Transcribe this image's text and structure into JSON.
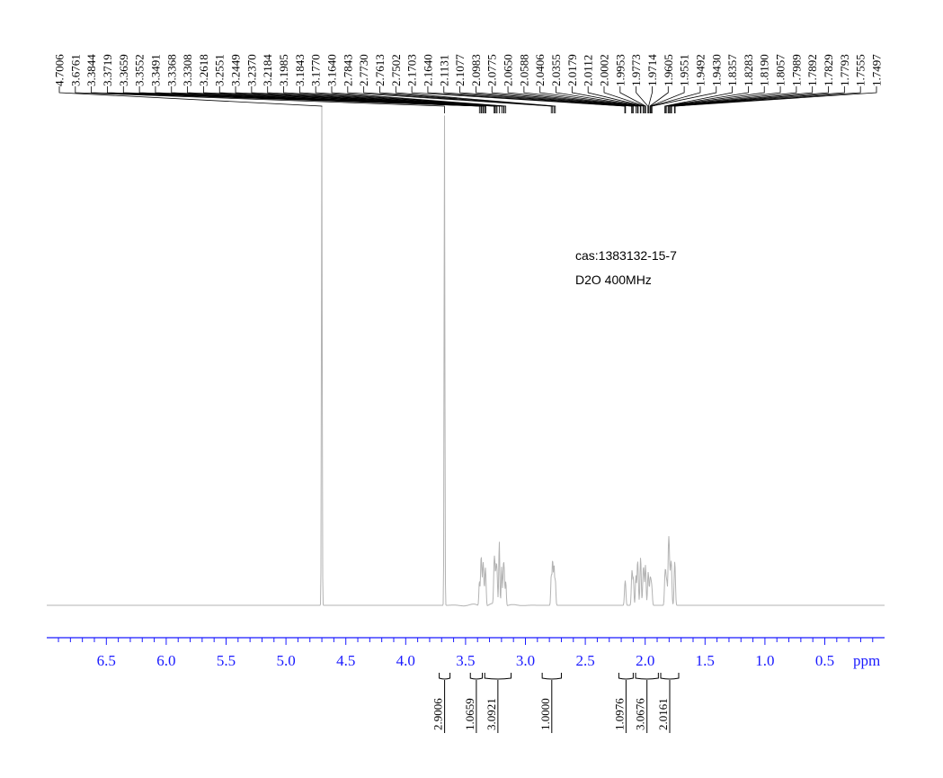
{
  "chart_data": {
    "type": "line",
    "kind": "1H NMR spectrum",
    "xlabel": "ppm",
    "x_reversed": true,
    "xlim": [
      7.0,
      -0.05
    ],
    "x_ticks": [
      6.5,
      6.0,
      5.5,
      5.0,
      4.5,
      4.0,
      3.5,
      3.0,
      2.5,
      2.0,
      1.5,
      1.0,
      0.5
    ],
    "x_tick_labels": [
      "6.5",
      "6.0",
      "5.5",
      "5.0",
      "4.5",
      "4.0",
      "3.5",
      "3.0",
      "2.5",
      "2.0",
      "1.5",
      "1.0",
      "0.5"
    ],
    "annotations": [
      "cas:1383132-15-7",
      "D2O  400MHz"
    ],
    "peak_labels": [
      "4.7006",
      "3.6761",
      "3.3844",
      "3.3719",
      "3.3659",
      "3.3552",
      "3.3491",
      "3.3368",
      "3.3308",
      "3.2618",
      "3.2551",
      "3.2449",
      "3.2370",
      "3.2184",
      "3.1985",
      "3.1843",
      "3.1770",
      "3.1640",
      "2.7843",
      "2.7730",
      "2.7613",
      "2.7502",
      "2.1703",
      "2.1640",
      "2.1131",
      "2.1077",
      "2.0983",
      "2.0775",
      "2.0650",
      "2.0588",
      "2.0406",
      "2.0355",
      "2.0179",
      "2.0112",
      "2.0002",
      "1.9953",
      "1.9773",
      "1.9714",
      "1.9605",
      "1.9551",
      "1.9492",
      "1.9430",
      "1.8357",
      "1.8283",
      "1.8190",
      "1.8057",
      "1.7989",
      "1.7892",
      "1.7829",
      "1.7793",
      "1.7555",
      "1.7497"
    ],
    "integrals": [
      {
        "label": "2.9006",
        "from": 3.72,
        "to": 3.63
      },
      {
        "label": "1.0659",
        "from": 3.46,
        "to": 3.36
      },
      {
        "label": "3.0921",
        "from": 3.34,
        "to": 3.12
      },
      {
        "label": "1.0000",
        "from": 2.86,
        "to": 2.7
      },
      {
        "label": "1.0976",
        "from": 2.22,
        "to": 2.1
      },
      {
        "label": "3.0676",
        "from": 2.08,
        "to": 1.89
      },
      {
        "label": "2.0161",
        "from": 1.87,
        "to": 1.72
      }
    ],
    "peaks": [
      {
        "ppm": 4.7006,
        "height": 1.0
      },
      {
        "ppm": 3.6761,
        "height": 0.99
      },
      {
        "ppm": 3.3844,
        "height": 0.05
      },
      {
        "ppm": 3.3719,
        "height": 0.07
      },
      {
        "ppm": 3.3659,
        "height": 0.06
      },
      {
        "ppm": 3.3552,
        "height": 0.065
      },
      {
        "ppm": 3.3491,
        "height": 0.05
      },
      {
        "ppm": 3.3368,
        "height": 0.055
      },
      {
        "ppm": 3.3308,
        "height": 0.045
      },
      {
        "ppm": 3.2618,
        "height": 0.07
      },
      {
        "ppm": 3.2551,
        "height": 0.06
      },
      {
        "ppm": 3.2449,
        "height": 0.065
      },
      {
        "ppm": 3.237,
        "height": 0.06
      },
      {
        "ppm": 3.2184,
        "height": 0.13
      },
      {
        "ppm": 3.1985,
        "height": 0.08
      },
      {
        "ppm": 3.1843,
        "height": 0.07
      },
      {
        "ppm": 3.177,
        "height": 0.06
      },
      {
        "ppm": 3.164,
        "height": 0.05
      },
      {
        "ppm": 2.7843,
        "height": 0.06
      },
      {
        "ppm": 2.773,
        "height": 0.09
      },
      {
        "ppm": 2.7613,
        "height": 0.08
      },
      {
        "ppm": 2.7502,
        "height": 0.05
      },
      {
        "ppm": 2.1703,
        "height": 0.03
      },
      {
        "ppm": 2.164,
        "height": 0.035
      },
      {
        "ppm": 2.1131,
        "height": 0.04
      },
      {
        "ppm": 2.1077,
        "height": 0.045
      },
      {
        "ppm": 2.0983,
        "height": 0.05
      },
      {
        "ppm": 2.0775,
        "height": 0.06
      },
      {
        "ppm": 2.065,
        "height": 0.065
      },
      {
        "ppm": 2.0588,
        "height": 0.05
      },
      {
        "ppm": 2.0406,
        "height": 0.06
      },
      {
        "ppm": 2.0355,
        "height": 0.055
      },
      {
        "ppm": 2.0179,
        "height": 0.05
      },
      {
        "ppm": 2.0112,
        "height": 0.055
      },
      {
        "ppm": 2.0002,
        "height": 0.045
      },
      {
        "ppm": 1.9953,
        "height": 0.05
      },
      {
        "ppm": 1.9773,
        "height": 0.045
      },
      {
        "ppm": 1.9714,
        "height": 0.04
      },
      {
        "ppm": 1.9605,
        "height": 0.035
      },
      {
        "ppm": 1.9551,
        "height": 0.03
      },
      {
        "ppm": 1.9492,
        "height": 0.028
      },
      {
        "ppm": 1.943,
        "height": 0.025
      },
      {
        "ppm": 1.8357,
        "height": 0.05
      },
      {
        "ppm": 1.8283,
        "height": 0.055
      },
      {
        "ppm": 1.819,
        "height": 0.045
      },
      {
        "ppm": 1.8057,
        "height": 0.1
      },
      {
        "ppm": 1.7989,
        "height": 0.09
      },
      {
        "ppm": 1.7892,
        "height": 0.05
      },
      {
        "ppm": 1.7829,
        "height": 0.045
      },
      {
        "ppm": 1.7793,
        "height": 0.04
      },
      {
        "ppm": 1.7555,
        "height": 0.06
      },
      {
        "ppm": 1.7497,
        "height": 0.05
      }
    ],
    "colors": {
      "spectrum": "#b3b3b3",
      "axis": "#1a1aff",
      "text": "#000000"
    }
  }
}
